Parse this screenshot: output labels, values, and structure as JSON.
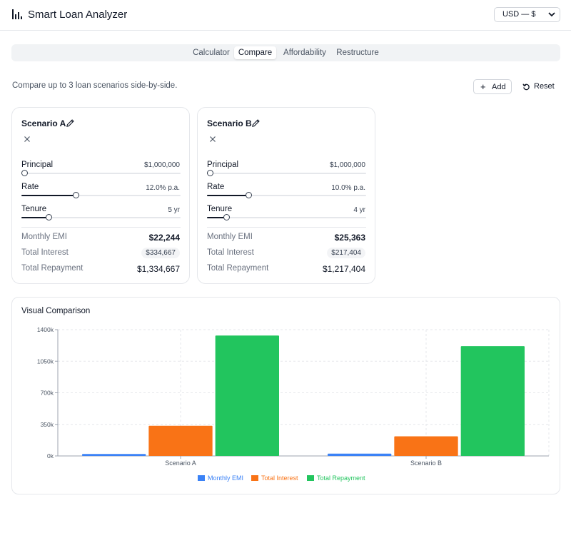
{
  "header": {
    "app_title": "Smart Loan Analyzer",
    "logo_icon": "bar-chart-icon",
    "currency_label": "USD — $"
  },
  "tabs": [
    {
      "label": "Calculator",
      "active": false
    },
    {
      "label": "Compare",
      "active": true
    },
    {
      "label": "Affordability",
      "active": false
    },
    {
      "label": "Restructure",
      "active": false
    }
  ],
  "compare": {
    "intro": "Compare up to 3 loan scenarios side-by-side.",
    "add_label": "Add",
    "reset_label": "Reset"
  },
  "scenarios": [
    {
      "name": "Scenario A",
      "principal_label": "Principal",
      "principal_value": "$1,000,000",
      "principal_fraction": 0.02,
      "rate_label": "Rate",
      "rate_value": "12.0% p.a.",
      "rate_fraction": 0.34,
      "tenure_label": "Tenure",
      "tenure_value": "5 yr",
      "tenure_fraction": 0.17,
      "emi_label": "Monthly EMI",
      "emi_value": "$22,244",
      "interest_label": "Total Interest",
      "interest_value": "$334,667",
      "repayment_label": "Total Repayment",
      "repayment_value": "$1,334,667"
    },
    {
      "name": "Scenario B",
      "principal_label": "Principal",
      "principal_value": "$1,000,000",
      "principal_fraction": 0.02,
      "rate_label": "Rate",
      "rate_value": "10.0% p.a.",
      "rate_fraction": 0.26,
      "tenure_label": "Tenure",
      "tenure_value": "4 yr",
      "tenure_fraction": 0.12,
      "emi_label": "Monthly EMI",
      "emi_value": "$25,363",
      "interest_label": "Total Interest",
      "interest_value": "$217,404",
      "repayment_label": "Total Repayment",
      "repayment_value": "$1,217,404"
    }
  ],
  "chart": {
    "title": "Visual Comparison"
  },
  "chart_data": {
    "type": "bar",
    "categories": [
      "Scenario A",
      "Scenario B"
    ],
    "series": [
      {
        "name": "Monthly EMI",
        "values": [
          22244,
          25363
        ],
        "color": "#3b82f6"
      },
      {
        "name": "Total Interest",
        "values": [
          334667,
          217404
        ],
        "color": "#f97316"
      },
      {
        "name": "Total Repayment",
        "values": [
          1334667,
          1217404
        ],
        "color": "#22c55e"
      }
    ],
    "ylim": [
      0,
      1400000
    ],
    "yticks": [
      0,
      350000,
      700000,
      1050000,
      1400000
    ],
    "ytick_labels": [
      "0k",
      "350k",
      "700k",
      "1050k",
      "1400k"
    ],
    "grid": true,
    "legend": "bottom"
  }
}
